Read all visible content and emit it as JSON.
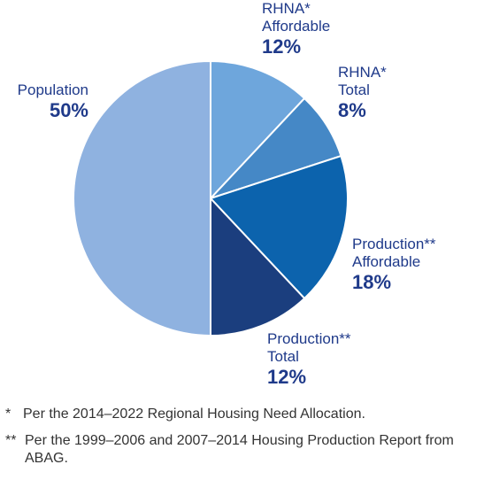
{
  "chart_data": {
    "type": "pie",
    "slices": [
      {
        "label_line1": "RHNA*",
        "label_line2": "Affordable",
        "value": 12,
        "value_label": "12%",
        "color": "#6ea6dc"
      },
      {
        "label_line1": "RHNA*",
        "label_line2": "Total",
        "value": 8,
        "value_label": "8%",
        "color": "#4588c6"
      },
      {
        "label_line1": "Production**",
        "label_line2": "Affordable",
        "value": 18,
        "value_label": "18%",
        "color": "#0c63ad"
      },
      {
        "label_line1": "Production**",
        "label_line2": "Total",
        "value": 12,
        "value_label": "12%",
        "color": "#1b3e7e"
      },
      {
        "label_line1": "Population",
        "label_line2": "",
        "value": 50,
        "value_label": "50%",
        "color": "#8fb2e0"
      }
    ],
    "label_color": "#1f3a8a"
  },
  "footnotes": [
    {
      "mark": "*",
      "text": "Per the 2014–2022 Regional Housing Need Allocation."
    },
    {
      "mark": "**",
      "text": "Per the 1999–2006 and 2007–2014 Housing Production Report from ABAG."
    }
  ]
}
